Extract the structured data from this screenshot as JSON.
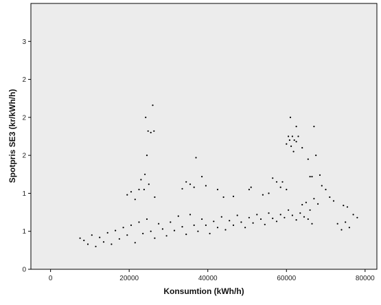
{
  "chart_data": {
    "type": "scatter",
    "xlabel": "Konsumtion (kWh/h)",
    "ylabel": "Spotpris SE3 (kr/kWh/h)",
    "xlim": [
      -5000,
      83000
    ],
    "ylim": [
      0,
      3.5
    ],
    "x_ticks": [
      {
        "value": 0,
        "label": "0"
      },
      {
        "value": 20000,
        "label": "20000"
      },
      {
        "value": 40000,
        "label": "40000"
      },
      {
        "value": 60000,
        "label": "60000"
      },
      {
        "value": 80000,
        "label": "80000"
      }
    ],
    "y_ticks": [
      {
        "value": 0,
        "label": "0"
      },
      {
        "value": 0.5,
        "label": "1"
      },
      {
        "value": 1.0,
        "label": "1"
      },
      {
        "value": 1.5,
        "label": "2"
      },
      {
        "value": 2.0,
        "label": "2"
      },
      {
        "value": 2.5,
        "label": "2"
      },
      {
        "value": 3.0,
        "label": "3"
      }
    ],
    "grid": false,
    "plot_background": "#ececec",
    "marker_color": "#000000",
    "note": "Dense cloud of several thousand hourly observations; points below summarize the visible distribution and outliers.",
    "points": [
      [
        7500,
        0.41
      ],
      [
        8500,
        0.38
      ],
      [
        9500,
        0.33
      ],
      [
        10500,
        0.45
      ],
      [
        11500,
        0.3
      ],
      [
        12500,
        0.42
      ],
      [
        13500,
        0.36
      ],
      [
        14500,
        0.48
      ],
      [
        15500,
        0.33
      ],
      [
        16500,
        0.51
      ],
      [
        17500,
        0.4
      ],
      [
        18500,
        0.55
      ],
      [
        19500,
        0.45
      ],
      [
        20500,
        0.58
      ],
      [
        21500,
        0.35
      ],
      [
        22500,
        0.62
      ],
      [
        23500,
        0.47
      ],
      [
        24500,
        0.66
      ],
      [
        25500,
        0.5
      ],
      [
        26500,
        0.41
      ],
      [
        27500,
        0.6
      ],
      [
        28500,
        0.53
      ],
      [
        29500,
        0.44
      ],
      [
        30500,
        0.62
      ],
      [
        31500,
        0.51
      ],
      [
        32500,
        0.7
      ],
      [
        33500,
        0.56
      ],
      [
        34500,
        0.46
      ],
      [
        35500,
        0.72
      ],
      [
        36500,
        0.58
      ],
      [
        37500,
        0.5
      ],
      [
        38500,
        0.66
      ],
      [
        39500,
        0.58
      ],
      [
        40500,
        0.47
      ],
      [
        41500,
        0.63
      ],
      [
        42500,
        0.55
      ],
      [
        43500,
        0.69
      ],
      [
        44500,
        0.52
      ],
      [
        45500,
        0.64
      ],
      [
        46500,
        0.58
      ],
      [
        47500,
        0.71
      ],
      [
        48500,
        0.62
      ],
      [
        49500,
        0.55
      ],
      [
        50500,
        0.68
      ],
      [
        51500,
        0.61
      ],
      [
        52500,
        0.72
      ],
      [
        53500,
        0.66
      ],
      [
        54500,
        0.59
      ],
      [
        55500,
        0.74
      ],
      [
        56500,
        0.67
      ],
      [
        57500,
        0.63
      ],
      [
        58500,
        0.72
      ],
      [
        59500,
        0.68
      ],
      [
        60500,
        0.78
      ],
      [
        61500,
        0.71
      ],
      [
        62500,
        0.65
      ],
      [
        63500,
        0.74
      ],
      [
        64500,
        0.69
      ],
      [
        65500,
        0.66
      ],
      [
        66500,
        0.6
      ],
      [
        19500,
        0.98
      ],
      [
        20500,
        1.02
      ],
      [
        21500,
        0.92
      ],
      [
        22500,
        1.05
      ],
      [
        23000,
        1.18
      ],
      [
        24000,
        1.25
      ],
      [
        25000,
        1.12
      ],
      [
        24500,
        1.5
      ],
      [
        24200,
        2.0
      ],
      [
        24800,
        1.82
      ],
      [
        25500,
        1.8
      ],
      [
        26300,
        1.82
      ],
      [
        26000,
        2.16
      ],
      [
        23800,
        1.05
      ],
      [
        26500,
        0.95
      ],
      [
        33500,
        1.06
      ],
      [
        34500,
        1.15
      ],
      [
        35500,
        1.12
      ],
      [
        36500,
        1.08
      ],
      [
        37000,
        1.47
      ],
      [
        38500,
        1.22
      ],
      [
        39500,
        1.1
      ],
      [
        42500,
        1.05
      ],
      [
        44000,
        0.95
      ],
      [
        46500,
        0.96
      ],
      [
        50500,
        1.05
      ],
      [
        51000,
        1.08
      ],
      [
        54000,
        0.98
      ],
      [
        55500,
        1.0
      ],
      [
        56500,
        1.2
      ],
      [
        57500,
        1.15
      ],
      [
        58500,
        1.08
      ],
      [
        59000,
        1.15
      ],
      [
        60000,
        1.05
      ],
      [
        60000,
        1.65
      ],
      [
        60800,
        1.7
      ],
      [
        61200,
        1.62
      ],
      [
        62000,
        1.7
      ],
      [
        62500,
        1.68
      ],
      [
        61000,
        2.0
      ],
      [
        61800,
        1.55
      ],
      [
        62500,
        1.88
      ],
      [
        60500,
        1.75
      ],
      [
        61500,
        1.75
      ],
      [
        63000,
        1.75
      ],
      [
        64000,
        1.6
      ],
      [
        65500,
        1.45
      ],
      [
        66000,
        1.22
      ],
      [
        66500,
        1.22
      ],
      [
        67000,
        1.88
      ],
      [
        67500,
        1.5
      ],
      [
        68500,
        1.24
      ],
      [
        70000,
        1.05
      ],
      [
        71000,
        0.95
      ],
      [
        72000,
        0.9
      ],
      [
        73000,
        0.6
      ],
      [
        74000,
        0.52
      ],
      [
        75000,
        0.62
      ],
      [
        76000,
        0.55
      ],
      [
        77000,
        0.72
      ],
      [
        78000,
        0.68
      ],
      [
        74500,
        0.84
      ],
      [
        75500,
        0.82
      ],
      [
        69000,
        1.1
      ],
      [
        64000,
        0.85
      ],
      [
        65000,
        0.88
      ],
      [
        67000,
        0.93
      ],
      [
        68000,
        0.86
      ],
      [
        66000,
        0.78
      ]
    ]
  }
}
